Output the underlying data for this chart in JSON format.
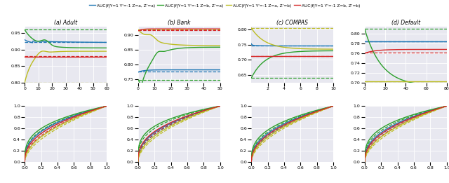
{
  "colors": [
    "#1f77b4",
    "#2ca02c",
    "#bcbd22",
    "#d62728"
  ],
  "legend_labels": [
    "AUC(f|Y=1 Y'=-1 Z=a, Z'=a)",
    "AUC(f|Y=1 Y'=-1 Z=b, Z'=a)",
    "AUC(f|Y=1 Y'=-1 Z=a, Z'=b)",
    "AUC(f|Y=1 Y'=-1 Z=b, Z'=b)"
  ],
  "subplot_titles": [
    "(a) Adult",
    "(b) Bank",
    "(c) COMPAS",
    "(d) Default"
  ],
  "background_color": "#e8e8f0",
  "fig_bg": "#ffffff",
  "panels": {
    "adult": {
      "xlim": [
        0,
        60
      ],
      "ylim": [
        0.8,
        0.97
      ],
      "xticks": [
        0,
        10,
        20,
        30,
        40,
        50,
        60
      ]
    },
    "bank": {
      "xlim": [
        0,
        50
      ],
      "ylim": [
        0.74,
        0.93
      ],
      "xticks": [
        0,
        10,
        20,
        30,
        40,
        50
      ]
    },
    "compas": {
      "xlim": [
        0,
        10
      ],
      "ylim": [
        0.625,
        0.81
      ],
      "xticks": [
        2,
        4,
        6,
        8,
        10
      ]
    },
    "default": {
      "xlim": [
        0,
        80
      ],
      "ylim": [
        0.7,
        0.815
      ],
      "xticks": [
        0,
        20,
        40,
        60,
        80
      ]
    }
  }
}
